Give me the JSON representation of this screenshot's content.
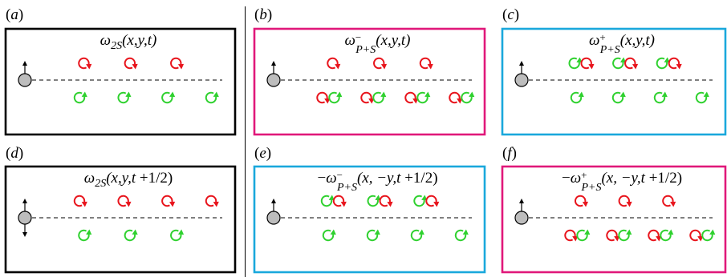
{
  "colors": {
    "black": "#000000",
    "magenta": "#e0187a",
    "cyan": "#1aa8dc",
    "red": "#e8141c",
    "green": "#2fd12f",
    "cylinder": "#bdbdbd"
  },
  "panels": [
    {
      "label": "(a)",
      "frame": "black",
      "title": [
        {
          "t": "ω",
          "i": true
        },
        {
          "t": "2S",
          "i": true,
          "sub": true
        },
        {
          "t": "(x,y,t)",
          "i": true
        }
      ],
      "arrow": "up",
      "top_vortices": [
        [
          "cw"
        ],
        [
          "cw"
        ],
        [
          "cw"
        ]
      ],
      "bottom_vortices": [
        [
          "ccw"
        ],
        [
          "ccw"
        ],
        [
          "ccw"
        ],
        [
          "ccw"
        ]
      ]
    },
    {
      "label": "(b)",
      "frame": "magenta",
      "title": [
        {
          "t": "ω",
          "i": true
        },
        {
          "t": "−",
          "sup": true
        },
        {
          "t": "P+S",
          "i": true,
          "sub": true
        },
        {
          "t": "(x,y,t)",
          "i": true
        }
      ],
      "arrow": "up",
      "top_vortices": [
        [
          "cw"
        ],
        [
          "cw"
        ],
        [
          "cw"
        ]
      ],
      "bottom_vortices": [
        [
          "cw",
          "ccw"
        ],
        [
          "cw",
          "ccw"
        ],
        [
          "cw",
          "ccw"
        ],
        [
          "cw",
          "ccw"
        ]
      ]
    },
    {
      "label": "(c)",
      "frame": "cyan",
      "title": [
        {
          "t": "ω",
          "i": true
        },
        {
          "t": "+",
          "sup": true
        },
        {
          "t": "P+S",
          "i": true,
          "sub": true
        },
        {
          "t": "(x,y,t)",
          "i": true
        }
      ],
      "arrow": "up",
      "top_vortices": [
        [
          "ccw",
          "cw"
        ],
        [
          "ccw",
          "cw"
        ],
        [
          "ccw",
          "cw"
        ]
      ],
      "bottom_vortices": [
        [
          "ccw"
        ],
        [
          "ccw"
        ],
        [
          "ccw"
        ],
        [
          "ccw"
        ]
      ]
    },
    {
      "label": "(d)",
      "frame": "black",
      "title": [
        {
          "t": "ω",
          "i": true
        },
        {
          "t": "2S",
          "i": true,
          "sub": true
        },
        {
          "t": "(x,y,t",
          "i": true
        },
        {
          "t": " +1/2)"
        }
      ],
      "arrow": "both",
      "top_vortices": [
        [
          "cw"
        ],
        [
          "cw"
        ],
        [
          "cw"
        ],
        [
          "cw"
        ]
      ],
      "bottom_vortices": [
        [
          "ccw"
        ],
        [
          "ccw"
        ],
        [
          "ccw"
        ]
      ]
    },
    {
      "label": "(e)",
      "frame": "cyan",
      "title": [
        {
          "t": "−"
        },
        {
          "t": "ω",
          "i": true
        },
        {
          "t": "−",
          "sup": true
        },
        {
          "t": "P+S",
          "i": true,
          "sub": true
        },
        {
          "t": "(x, −y,t",
          "i": true
        },
        {
          "t": " +1/2)"
        }
      ],
      "arrow": "up",
      "top_vortices": [
        [
          "ccw",
          "cw"
        ],
        [
          "ccw",
          "cw"
        ],
        [
          "ccw",
          "cw"
        ]
      ],
      "bottom_vortices": [
        [
          "ccw"
        ],
        [
          "ccw"
        ],
        [
          "ccw"
        ],
        [
          "ccw"
        ]
      ]
    },
    {
      "label": "(f)",
      "frame": "magenta",
      "title": [
        {
          "t": "−"
        },
        {
          "t": "ω",
          "i": true
        },
        {
          "t": "+",
          "sup": true
        },
        {
          "t": "P+S",
          "i": true,
          "sub": true
        },
        {
          "t": "(x, −y,t",
          "i": true
        },
        {
          "t": " +1/2)"
        }
      ],
      "arrow": "up",
      "top_vortices": [
        [
          "cw"
        ],
        [
          "cw"
        ],
        [
          "cw"
        ]
      ],
      "bottom_vortices": [
        [
          "cw",
          "ccw"
        ],
        [
          "cw",
          "ccw"
        ],
        [
          "cw",
          "ccw"
        ],
        [
          "cw",
          "ccw"
        ]
      ]
    }
  ]
}
